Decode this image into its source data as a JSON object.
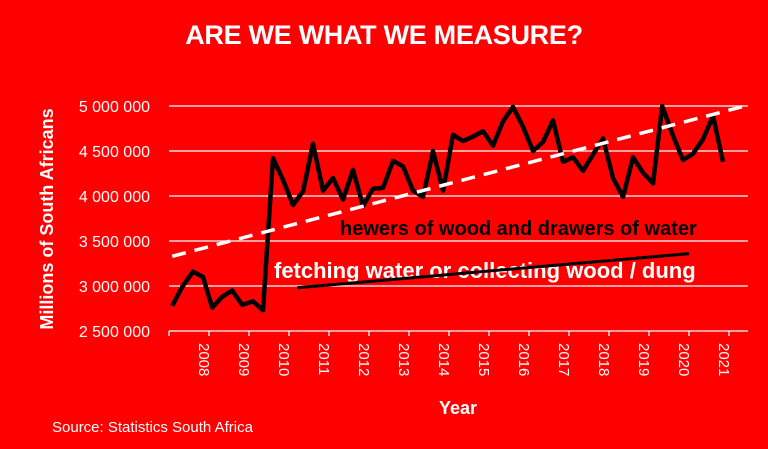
{
  "title": "ARE WE WHAT WE MEASURE?",
  "source": "Source: Statistics South Africa",
  "colors": {
    "background": "#ff0000",
    "text": "#ffffff",
    "series_line": "#000000",
    "trend_dashed": "#ffffff",
    "trend_solid": "#000000",
    "gridline": "#ffffff"
  },
  "chart_data": {
    "type": "line",
    "title": "ARE WE WHAT WE MEASURE?",
    "xlabel": "Year",
    "ylabel": "Millions of South Africans",
    "ylim": [
      2500000,
      5000000
    ],
    "yticks": [
      2500000,
      3000000,
      3500000,
      4000000,
      4500000,
      5000000
    ],
    "ytick_labels": [
      "2 500 000",
      "3 000 000",
      "3 500 000",
      "4 000 000",
      "4 500 000",
      "5 000 000"
    ],
    "xtick_labels": [
      "2008",
      "2009",
      "2010",
      "2011",
      "2012",
      "2013",
      "2014",
      "2015",
      "2016",
      "2017",
      "2018",
      "2019",
      "2020",
      "2021"
    ],
    "xlim": [
      2007.0,
      2021.4
    ],
    "grid": true,
    "legend": "none",
    "series": [
      {
        "name": "hewers of wood and drawers of water",
        "style": "solid-thick-black",
        "x": [
          2007.08,
          2007.33,
          2007.6,
          2007.85,
          2008.08,
          2008.33,
          2008.58,
          2008.83,
          2009.1,
          2009.35,
          2009.6,
          2009.85,
          2010.1,
          2010.35,
          2010.6,
          2010.85,
          2011.1,
          2011.35,
          2011.6,
          2011.85,
          2012.1,
          2012.35,
          2012.6,
          2012.85,
          2013.1,
          2013.35,
          2013.6,
          2013.85,
          2014.1,
          2014.35,
          2014.6,
          2014.85,
          2015.1,
          2015.35,
          2015.6,
          2015.85,
          2016.1,
          2016.35,
          2016.6,
          2016.85,
          2017.1,
          2017.35,
          2017.6,
          2017.85,
          2018.1,
          2018.35,
          2018.6,
          2018.85,
          2019.1,
          2019.33,
          2019.6,
          2019.85,
          2020.1,
          2020.35,
          2020.6,
          2020.85
        ],
        "values": [
          2780000,
          2990000,
          3160000,
          3100000,
          2760000,
          2880000,
          2950000,
          2790000,
          2830000,
          2730000,
          4420000,
          4180000,
          3900000,
          4050000,
          4580000,
          4060000,
          4200000,
          3960000,
          4290000,
          3890000,
          4080000,
          4090000,
          4390000,
          4330000,
          4060000,
          3990000,
          4500000,
          4060000,
          4680000,
          4610000,
          4660000,
          4720000,
          4560000,
          4830000,
          4990000,
          4770000,
          4500000,
          4600000,
          4840000,
          4380000,
          4430000,
          4280000,
          4460000,
          4640000,
          4200000,
          3990000,
          4430000,
          4260000,
          4140000,
          5000000,
          4670000,
          4400000,
          4470000,
          4630000,
          4890000,
          4380000
        ]
      },
      {
        "name": "trend (hewers of wood and drawers of water)",
        "style": "dashed-white",
        "x": [
          2007.08,
          2021.4
        ],
        "values": [
          3330000,
          5000000
        ]
      },
      {
        "name": "fetching water or collecting wood / dung",
        "style": "solid-black",
        "x": [
          2010.2,
          2020.0
        ],
        "values": [
          2980000,
          3360000
        ]
      }
    ],
    "annotations": [
      {
        "text": "hewers of wood and drawers of water",
        "color": "#000000"
      },
      {
        "text": "fetching water or collecting wood / dung",
        "color": "#ffffff"
      }
    ]
  }
}
